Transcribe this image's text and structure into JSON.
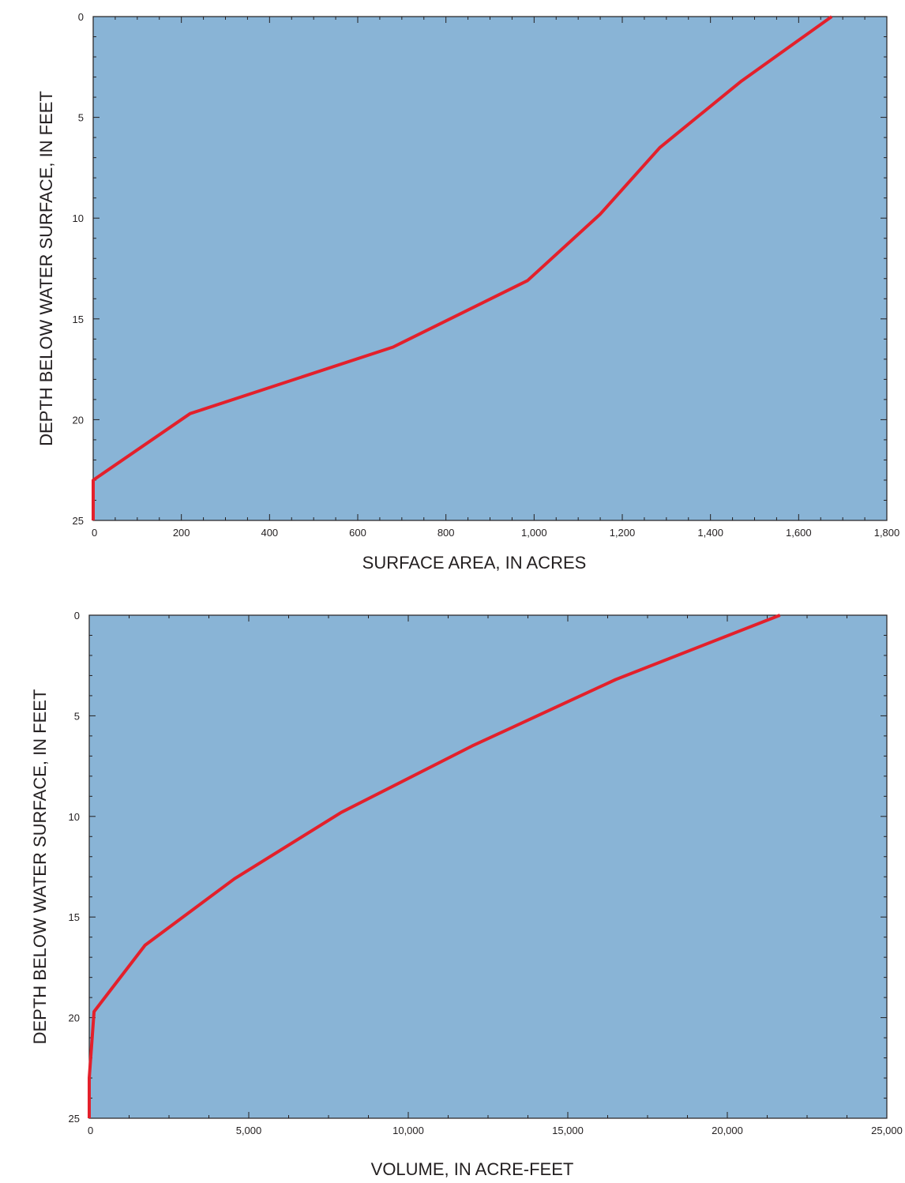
{
  "chart_data": [
    {
      "type": "line",
      "title": "",
      "xlabel": "SURFACE AREA, IN ACRES",
      "ylabel": "DEPTH BELOW WATER SURFACE, IN FEET",
      "xlim": [
        0,
        1800
      ],
      "ylim": [
        0,
        25
      ],
      "y_inverted": true,
      "xticks": [
        0,
        200,
        400,
        600,
        800,
        1000,
        1200,
        1400,
        1600,
        1800
      ],
      "xtick_labels": [
        "0",
        "200",
        "400",
        "600",
        "800",
        "1,000",
        "1,200",
        "1,400",
        "1,600",
        "1,800"
      ],
      "yticks": [
        0,
        5,
        10,
        15,
        20,
        25
      ],
      "ytick_labels": [
        "0",
        "5",
        "10",
        "15",
        "20",
        "25"
      ],
      "grid": false,
      "background_color": "#89b4d6",
      "line_color": "#e3202b",
      "series": [
        {
          "x": [
            0,
            0,
            220,
            680,
            985,
            1150,
            1285,
            1470,
            1675
          ],
          "y": [
            25,
            23,
            19.7,
            16.4,
            13.1,
            9.8,
            6.5,
            3.2,
            0
          ]
        }
      ]
    },
    {
      "type": "line",
      "title": "",
      "xlabel": "VOLUME, IN ACRE-FEET",
      "ylabel": "DEPTH BELOW WATER SURFACE, IN FEET",
      "xlim": [
        0,
        25000
      ],
      "ylim": [
        0,
        25
      ],
      "y_inverted": true,
      "xticks": [
        0,
        5000,
        10000,
        15000,
        20000,
        25000
      ],
      "xtick_labels": [
        "0",
        "5,000",
        "10,000",
        "15,000",
        "20,000",
        "25,000"
      ],
      "yticks": [
        0,
        5,
        10,
        15,
        20,
        25
      ],
      "ytick_labels": [
        "0",
        "5",
        "10",
        "15",
        "20",
        "25"
      ],
      "grid": false,
      "background_color": "#89b4d6",
      "line_color": "#e3202b",
      "series": [
        {
          "x": [
            0,
            0,
            150,
            1750,
            4550,
            7900,
            12000,
            16500,
            21650
          ],
          "y": [
            25,
            23,
            19.7,
            16.4,
            13.1,
            9.8,
            6.5,
            3.2,
            0
          ]
        }
      ]
    }
  ]
}
